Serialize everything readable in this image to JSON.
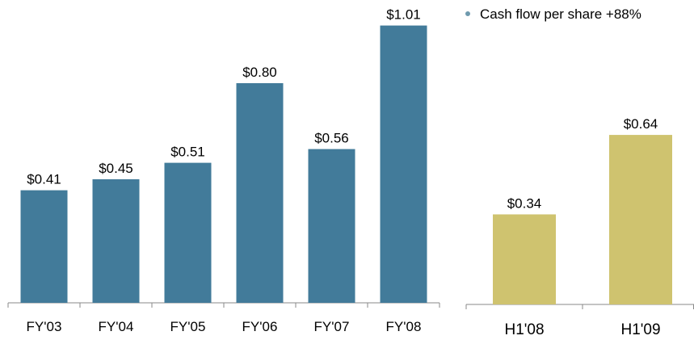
{
  "chart_data": [
    {
      "type": "bar",
      "categories": [
        "FY'03",
        "FY'04",
        "FY'05",
        "FY'06",
        "FY'07",
        "FY'08"
      ],
      "values": [
        0.41,
        0.45,
        0.51,
        0.8,
        0.56,
        1.01
      ],
      "value_labels": [
        "$0.41",
        "$0.45",
        "$0.51",
        "$0.80",
        "$0.56",
        "$1.01"
      ],
      "color": "#427b9a"
    },
    {
      "type": "bar",
      "annotation": "Cash flow per share +88%",
      "categories": [
        "H1'08",
        "H1'09"
      ],
      "values": [
        0.34,
        0.64
      ],
      "value_labels": [
        "$0.34",
        "$0.64"
      ],
      "color": "#cfc36f"
    }
  ]
}
